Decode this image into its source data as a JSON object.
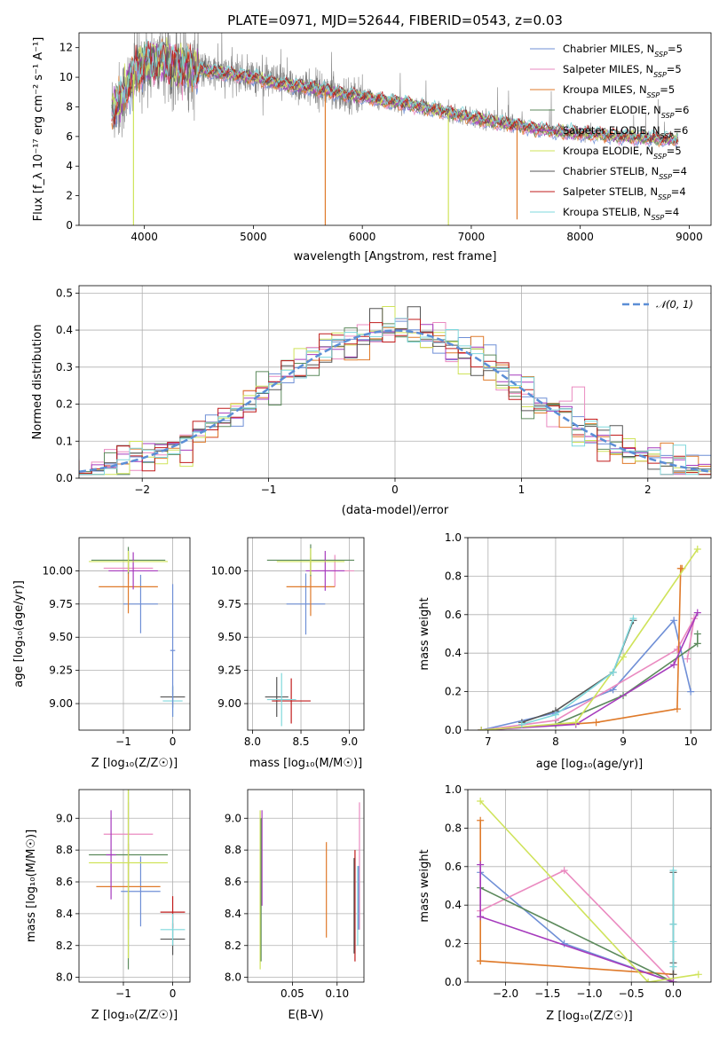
{
  "title": "PLATE=0971, MJD=52644, FIBERID=0543, z=0.03",
  "colors": {
    "Chabrier MILES": "#6f8fd6",
    "Salpeter MILES": "#ea8ac0",
    "Kroupa MILES": "#df7a2a",
    "Chabrier ELODIE": "#5c8a5c",
    "Salpeter ELODIE": "#a63bbd",
    "Kroupa ELODIE": "#cfe35a",
    "Chabrier STELIB": "#555555",
    "Salpeter STELIB": "#c01b1b",
    "Kroupa STELIB": "#7fd8dc",
    "data": "#808080",
    "normal": "#5b8ed6"
  },
  "chart_data": [
    {
      "id": "spectrum",
      "type": "line",
      "xlabel": "wavelength [Angstrom, rest frame]",
      "ylabel": "Flux [f_λ 10⁻¹⁷ erg cm⁻² s⁻¹ A⁻¹]",
      "xlim": [
        3400,
        9200
      ],
      "ylim": [
        0,
        13
      ],
      "xticks": [
        4000,
        5000,
        6000,
        7000,
        8000,
        9000
      ],
      "yticks": [
        0,
        2,
        4,
        6,
        8,
        10,
        12
      ],
      "legend_position": "top-right",
      "legend": [
        {
          "name": "Chabrier MILES",
          "nssp": "5"
        },
        {
          "name": "Salpeter MILES",
          "nssp": "5"
        },
        {
          "name": "Kroupa MILES",
          "nssp": "5"
        },
        {
          "name": "Chabrier ELODIE",
          "nssp": "6"
        },
        {
          "name": "Salpeter ELODIE",
          "nssp": "6"
        },
        {
          "name": "Kroupa ELODIE",
          "nssp": "5"
        },
        {
          "name": "Chabrier STELIB",
          "nssp": "4"
        },
        {
          "name": "Salpeter STELIB",
          "nssp": "4"
        },
        {
          "name": "Kroupa STELIB",
          "nssp": "4"
        }
      ],
      "continuum": {
        "x": [
          3700,
          3800,
          3900,
          4000,
          4100,
          4200,
          4400,
          4600,
          4800,
          5000,
          5200,
          5400,
          5600,
          5800,
          6000,
          6200,
          6400,
          6600,
          6800,
          7000,
          7200,
          7400,
          7600,
          7800,
          8000,
          8200,
          8400,
          8600,
          8800,
          8900
        ],
        "y": [
          7.8,
          8.6,
          10.2,
          10.9,
          11.1,
          11.0,
          10.6,
          10.4,
          10.2,
          10.0,
          9.6,
          9.4,
          9.2,
          8.9,
          8.7,
          8.4,
          8.2,
          7.9,
          7.6,
          7.3,
          7.0,
          6.8,
          6.5,
          6.3,
          6.2,
          6.1,
          6.0,
          5.9,
          5.8,
          5.8
        ]
      },
      "dips": [
        {
          "series": "Kroupa MILES",
          "x": 5660,
          "y": 0
        },
        {
          "series": "Kroupa ELODIE",
          "x": 6790,
          "y": 0
        },
        {
          "series": "Kroupa ELODIE",
          "x": 3900,
          "y": 0
        },
        {
          "series": "Kroupa MILES",
          "x": 7420,
          "y": 0.4
        }
      ]
    },
    {
      "id": "residuals",
      "type": "histogram",
      "xlabel": "(data-model)/error",
      "ylabel": "Normed distribution",
      "xlim": [
        -2.5,
        2.5
      ],
      "ylim": [
        0,
        0.52
      ],
      "xticks": [
        -2,
        -1,
        0,
        1,
        2
      ],
      "yticks": [
        0.0,
        0.1,
        0.2,
        0.3,
        0.4,
        0.5
      ],
      "bin_width": 0.1,
      "legend_position": "top-right",
      "reference_curve": {
        "name": "𝒩(0, 1)",
        "mean": 0,
        "sigma": 1
      }
    },
    {
      "id": "z-age",
      "type": "errorbar",
      "xlabel": "Z [log₁₀(Z/Z☉)]",
      "ylabel": "age  [log₁₀(age/yr)]",
      "xlim": [
        -1.9,
        0.35
      ],
      "ylim": [
        8.8,
        10.25
      ],
      "xticks": [
        -1,
        0
      ],
      "yticks": [
        9.0,
        9.25,
        9.5,
        9.75,
        10.0
      ],
      "points": [
        {
          "series": "Chabrier MILES",
          "x": -0.65,
          "xerr": 0.35,
          "y": 9.75,
          "yerr": 0.22
        },
        {
          "series": "Salpeter MILES",
          "x": -0.9,
          "xerr": 0.5,
          "y": 10.02,
          "yerr": 0.12
        },
        {
          "series": "Kroupa MILES",
          "x": -0.9,
          "xerr": 0.6,
          "y": 9.88,
          "yerr": 0.2
        },
        {
          "series": "Chabrier ELODIE",
          "x": -0.9,
          "xerr": 0.75,
          "y": 10.08,
          "yerr": 0.1
        },
        {
          "series": "Salpeter ELODIE",
          "x": -0.8,
          "xerr": 0.5,
          "y": 10.0,
          "yerr": 0.14
        },
        {
          "series": "Kroupa ELODIE",
          "x": -0.9,
          "xerr": 0.8,
          "y": 10.07,
          "yerr": 0.08
        },
        {
          "series": "Chabrier STELIB",
          "x": 0.0,
          "xerr": 0.25,
          "y": 9.05,
          "yerr": 0.08
        },
        {
          "series": "Kroupa STELIB",
          "x": 0.0,
          "xerr": 0.2,
          "y": 9.02,
          "yerr": 0.12
        },
        {
          "series": "Chabrier MILES",
          "x": 0.0,
          "xerr": 0.05,
          "y": 9.4,
          "yerr": 0.5
        }
      ]
    },
    {
      "id": "mass-age",
      "type": "errorbar",
      "xlabel": "mass [log₁₀(M/M☉)]",
      "xlim": [
        7.95,
        9.15
      ],
      "ylim": [
        8.8,
        10.25
      ],
      "xticks": [
        8.0,
        8.5,
        9.0
      ],
      "yticks": [
        9.0,
        9.25,
        9.5,
        9.75,
        10.0
      ],
      "points": [
        {
          "series": "Chabrier MILES",
          "x": 8.55,
          "xerr": 0.2,
          "y": 9.75,
          "yerr": 0.23
        },
        {
          "series": "Salpeter MILES",
          "x": 8.85,
          "xerr": 0.2,
          "y": 10.0,
          "yerr": 0.12
        },
        {
          "series": "Kroupa MILES",
          "x": 8.6,
          "xerr": 0.25,
          "y": 9.88,
          "yerr": 0.22
        },
        {
          "series": "Chabrier ELODIE",
          "x": 8.6,
          "xerr": 0.45,
          "y": 10.08,
          "yerr": 0.12
        },
        {
          "series": "Salpeter ELODIE",
          "x": 8.75,
          "xerr": 0.2,
          "y": 10.0,
          "yerr": 0.15
        },
        {
          "series": "Kroupa ELODIE",
          "x": 8.6,
          "xerr": 0.35,
          "y": 10.07,
          "yerr": 0.1
        },
        {
          "series": "Chabrier STELIB",
          "x": 8.25,
          "xerr": 0.12,
          "y": 9.05,
          "yerr": 0.15
        },
        {
          "series": "Salpeter STELIB",
          "x": 8.4,
          "xerr": 0.2,
          "y": 9.02,
          "yerr": 0.17
        },
        {
          "series": "Kroupa STELIB",
          "x": 8.3,
          "xerr": 0.15,
          "y": 9.03,
          "yerr": 0.2
        }
      ]
    },
    {
      "id": "age-weight",
      "type": "line",
      "xlabel": "age  [log₁₀(age/yr)]",
      "ylabel": "mass weight",
      "xlim": [
        6.7,
        10.3
      ],
      "ylim": [
        0,
        1.0
      ],
      "xticks": [
        7,
        8,
        9,
        10
      ],
      "yticks": [
        0.0,
        0.2,
        0.4,
        0.6,
        0.8,
        1.0
      ],
      "series": [
        {
          "name": "Chabrier MILES",
          "x": [
            6.9,
            8.0,
            8.85,
            9.75,
            10.0
          ],
          "y": [
            0.0,
            0.09,
            0.21,
            0.57,
            0.2
          ]
        },
        {
          "name": "Salpeter MILES",
          "x": [
            6.9,
            8.0,
            9.8,
            10.05,
            9.95
          ],
          "y": [
            0.0,
            0.05,
            0.42,
            0.58,
            0.37
          ]
        },
        {
          "name": "Kroupa MILES",
          "x": [
            6.9,
            8.6,
            9.8,
            9.85,
            9.87
          ],
          "y": [
            0.0,
            0.04,
            0.11,
            0.84,
            0.84
          ]
        },
        {
          "name": "Chabrier ELODIE",
          "x": [
            6.9,
            8.0,
            9.0,
            10.1,
            10.1
          ],
          "y": [
            0.0,
            0.03,
            0.18,
            0.45,
            0.5
          ]
        },
        {
          "name": "Salpeter ELODIE",
          "x": [
            6.9,
            8.3,
            9.75,
            10.1
          ],
          "y": [
            0.0,
            0.03,
            0.34,
            0.61
          ]
        },
        {
          "name": "Kroupa ELODIE",
          "x": [
            6.9,
            8.3,
            9.0,
            10.1
          ],
          "y": [
            0.0,
            0.04,
            0.38,
            0.94
          ]
        },
        {
          "name": "Chabrier STELIB",
          "x": [
            7.5,
            8.0,
            8.85,
            9.15
          ],
          "y": [
            0.04,
            0.1,
            0.3,
            0.57
          ]
        },
        {
          "name": "Kroupa STELIB",
          "x": [
            7.5,
            8.0,
            8.85,
            9.15
          ],
          "y": [
            0.03,
            0.08,
            0.3,
            0.58
          ]
        }
      ]
    },
    {
      "id": "z-mass",
      "type": "errorbar",
      "xlabel": "Z [log₁₀(Z/Z☉)]",
      "ylabel": "mass [log₁₀(M/M☉)]",
      "xlim": [
        -1.9,
        0.35
      ],
      "ylim": [
        7.97,
        9.18
      ],
      "xticks": [
        -1,
        0
      ],
      "yticks": [
        8.0,
        8.2,
        8.4,
        8.6,
        8.8,
        9.0
      ],
      "points": [
        {
          "series": "Chabrier MILES",
          "x": -0.65,
          "xerr": 0.4,
          "y": 8.54,
          "yerr": 0.22
        },
        {
          "series": "Salpeter MILES",
          "x": -0.9,
          "xerr": 0.5,
          "y": 8.9,
          "yerr": 0.2
        },
        {
          "series": "Kroupa MILES",
          "x": -0.9,
          "xerr": 0.65,
          "y": 8.57,
          "yerr": 0.27
        },
        {
          "series": "Chabrier ELODIE",
          "x": -0.9,
          "xerr": 0.8,
          "y": 8.77,
          "yerr": 0.72
        },
        {
          "series": "Salpeter ELODIE",
          "x": -1.25,
          "xerr": 0.1,
          "y": 8.77,
          "yerr": 0.28
        },
        {
          "series": "Kroupa ELODIE",
          "x": -0.9,
          "xerr": 0.8,
          "y": 8.72,
          "yerr": 0.6
        },
        {
          "series": "Chabrier STELIB",
          "x": 0.0,
          "xerr": 0.25,
          "y": 8.24,
          "yerr": 0.1
        },
        {
          "series": "Salpeter STELIB",
          "x": 0.0,
          "xerr": 0.25,
          "y": 8.41,
          "yerr": 0.1
        },
        {
          "series": "Kroupa STELIB",
          "x": 0.0,
          "xerr": 0.25,
          "y": 8.3,
          "yerr": 0.1
        }
      ]
    },
    {
      "id": "ebv-mass",
      "type": "errorbar",
      "xlabel": "E(B-V)",
      "xlim": [
        0.0,
        0.13
      ],
      "ylim": [
        7.97,
        9.18
      ],
      "xticks": [
        0.05,
        0.1
      ],
      "yticks": [
        8.0,
        8.2,
        8.4,
        8.6,
        8.8,
        9.0
      ],
      "points": [
        {
          "series": "Salpeter ELODIE",
          "x": 0.016,
          "y": 8.75,
          "yerr": 0.3
        },
        {
          "series": "Kroupa ELODIE",
          "x": 0.014,
          "y": 8.55,
          "yerr": 0.5
        },
        {
          "series": "Chabrier ELODIE",
          "x": 0.015,
          "y": 8.55,
          "yerr": 0.45
        },
        {
          "series": "Kroupa MILES",
          "x": 0.088,
          "y": 8.55,
          "yerr": 0.3
        },
        {
          "series": "Salpeter MILES",
          "x": 0.125,
          "y": 8.7,
          "yerr": 0.4
        },
        {
          "series": "Salpeter STELIB",
          "x": 0.12,
          "y": 8.45,
          "yerr": 0.35
        },
        {
          "series": "Chabrier STELIB",
          "x": 0.119,
          "y": 8.45,
          "yerr": 0.3
        },
        {
          "series": "Kroupa STELIB",
          "x": 0.123,
          "y": 8.45,
          "yerr": 0.25
        },
        {
          "series": "Chabrier MILES",
          "x": 0.124,
          "y": 8.5,
          "yerr": 0.2
        }
      ]
    },
    {
      "id": "z-weight",
      "type": "line",
      "xlabel": "Z [log₁₀(Z/Z☉)]",
      "ylabel": "mass weight",
      "xlim": [
        -2.45,
        0.45
      ],
      "ylim": [
        0,
        1.0
      ],
      "xticks": [
        -2.0,
        -1.5,
        -1.0,
        -0.5,
        0.0
      ],
      "yticks": [
        0.0,
        0.2,
        0.4,
        0.6,
        0.8,
        1.0
      ],
      "series": [
        {
          "name": "Chabrier MILES",
          "x": [
            -2.3,
            -1.3,
            0.0
          ],
          "y": [
            0.57,
            0.2,
            0.0
          ]
        },
        {
          "name": "Salpeter MILES",
          "x": [
            -2.3,
            -1.3,
            0.0
          ],
          "y": [
            0.37,
            0.58,
            0.0
          ]
        },
        {
          "name": "Kroupa MILES",
          "x": [
            -2.3,
            -2.3,
            -2.3,
            0.0
          ],
          "y": [
            0.84,
            0.11,
            0.11,
            0.04
          ]
        },
        {
          "name": "Chabrier ELODIE",
          "x": [
            -2.3,
            0.0
          ],
          "y": [
            0.49,
            0.0
          ]
        },
        {
          "name": "Salpeter ELODIE",
          "x": [
            -2.3,
            -2.3,
            0.0
          ],
          "y": [
            0.61,
            0.34,
            0.0
          ]
        },
        {
          "name": "Kroupa ELODIE",
          "x": [
            -2.3,
            -0.3,
            0.3
          ],
          "y": [
            0.94,
            0.0,
            0.04
          ]
        },
        {
          "name": "Chabrier STELIB",
          "x": [
            0.0,
            0.0,
            0.0,
            0.0
          ],
          "y": [
            0.57,
            0.3,
            0.1,
            0.04
          ]
        },
        {
          "name": "Kroupa STELIB",
          "x": [
            0.0,
            0.0,
            0.0,
            0.0
          ],
          "y": [
            0.58,
            0.3,
            0.21,
            0.08
          ]
        }
      ]
    }
  ]
}
